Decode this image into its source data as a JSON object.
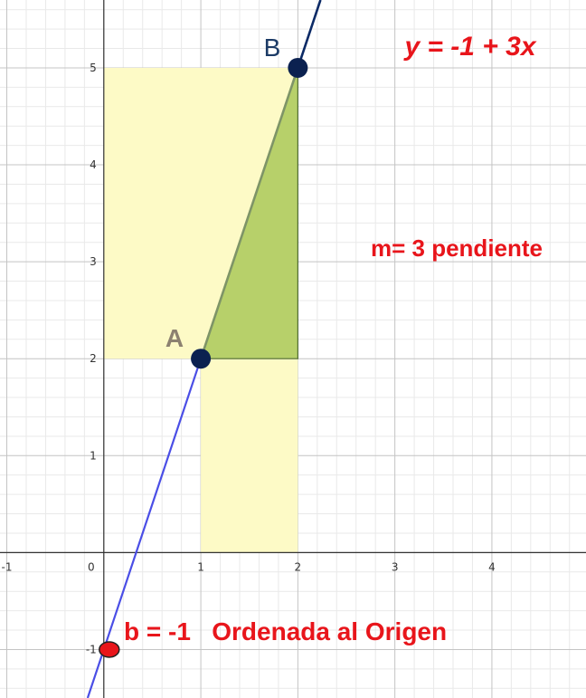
{
  "chart_data": {
    "type": "line",
    "title": "",
    "xlabel": "",
    "ylabel": "",
    "xlim": [
      -1.07,
      4.97
    ],
    "ylim": [
      -1.5,
      5.7
    ],
    "grid": true,
    "x_ticks": [
      "-1",
      "0",
      "1",
      "2",
      "3",
      "4"
    ],
    "y_ticks": [
      "-1",
      "1",
      "2",
      "3",
      "4",
      "5"
    ],
    "line": {
      "slope": 3,
      "intercept": -1,
      "color_lower": "#4a4ee6",
      "color_upper": "#0b2a66",
      "segment_color": "#7e9467"
    },
    "points": [
      {
        "label": "A",
        "x": 1,
        "y": 2,
        "color": "#0b2150",
        "label_color": "#8c8170"
      },
      {
        "label": "B",
        "x": 2,
        "y": 5,
        "color": "#0b2150",
        "label_color": "#1c3b66"
      },
      {
        "label": "",
        "x": 0,
        "y": -1,
        "color": "#e8151b"
      }
    ],
    "shaded_regions": [
      {
        "name": "rise",
        "x": [
          0,
          2
        ],
        "y": [
          2,
          5
        ],
        "color": "#fdfac6"
      },
      {
        "name": "run",
        "x": [
          1,
          2
        ],
        "y": [
          0,
          2
        ],
        "color": "#fdfac6"
      },
      {
        "name": "slope-triangle",
        "vertices": [
          [
            1,
            2
          ],
          [
            2,
            2
          ],
          [
            2,
            5
          ]
        ],
        "color": "#b7d06a"
      }
    ],
    "annotations": {
      "equation": "y = -1 + 3x",
      "slope": "m= 3 pendiente",
      "intercept": "b = -1   Ordenada al Origen"
    }
  }
}
